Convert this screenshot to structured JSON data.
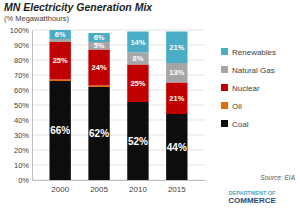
{
  "chart_data": {
    "type": "bar",
    "title": "MN Electricity Generation Mix",
    "subtitle": "(% Megawatthours)",
    "annotations": [
      "Source:  EIA",
      "DEPARTMENT OF",
      "COMMERCE"
    ],
    "categories": [
      "2000",
      "2005",
      "2010",
      "2015"
    ],
    "series": [
      {
        "name": "Coal",
        "color": "#0d0d0d",
        "values": [
          66,
          62,
          52,
          44
        ],
        "value_labels": [
          "66%",
          "62%",
          "52%",
          "44%"
        ]
      },
      {
        "name": "Oil",
        "color": "#e46c0a",
        "values": [
          1,
          1,
          0,
          0
        ],
        "value_labels": [
          null,
          null,
          null,
          null
        ]
      },
      {
        "name": "Nuclear",
        "color": "#c00000",
        "values": [
          25,
          24,
          25,
          21
        ],
        "value_labels": [
          "25%",
          "24%",
          "25%",
          "21%"
        ]
      },
      {
        "name": "Natural Gas",
        "color": "#a6a6a6",
        "values": [
          2,
          5,
          8,
          13
        ],
        "value_labels": [
          null,
          "5%",
          "8%",
          "13%"
        ]
      },
      {
        "name": "Renewables",
        "color": "#4bacc6",
        "values": [
          6,
          6,
          14,
          21
        ],
        "value_labels": [
          "6%",
          "6%",
          "14%",
          "21%"
        ]
      }
    ],
    "ylim": [
      0,
      100
    ],
    "yticks": [
      {
        "value": 0,
        "label": "0%"
      },
      {
        "value": 10,
        "label": "10%"
      },
      {
        "value": 20,
        "label": "20%"
      },
      {
        "value": 30,
        "label": "30%"
      },
      {
        "value": 40,
        "label": "40%"
      },
      {
        "value": 50,
        "label": "50%"
      },
      {
        "value": 60,
        "label": "60%"
      },
      {
        "value": 70,
        "label": "70%"
      },
      {
        "value": 80,
        "label": "80%"
      },
      {
        "value": 90,
        "label": "90%"
      },
      {
        "value": 100,
        "label": "100%"
      }
    ],
    "grid": true,
    "stacked": true,
    "data_labels": true,
    "legend": "right"
  }
}
